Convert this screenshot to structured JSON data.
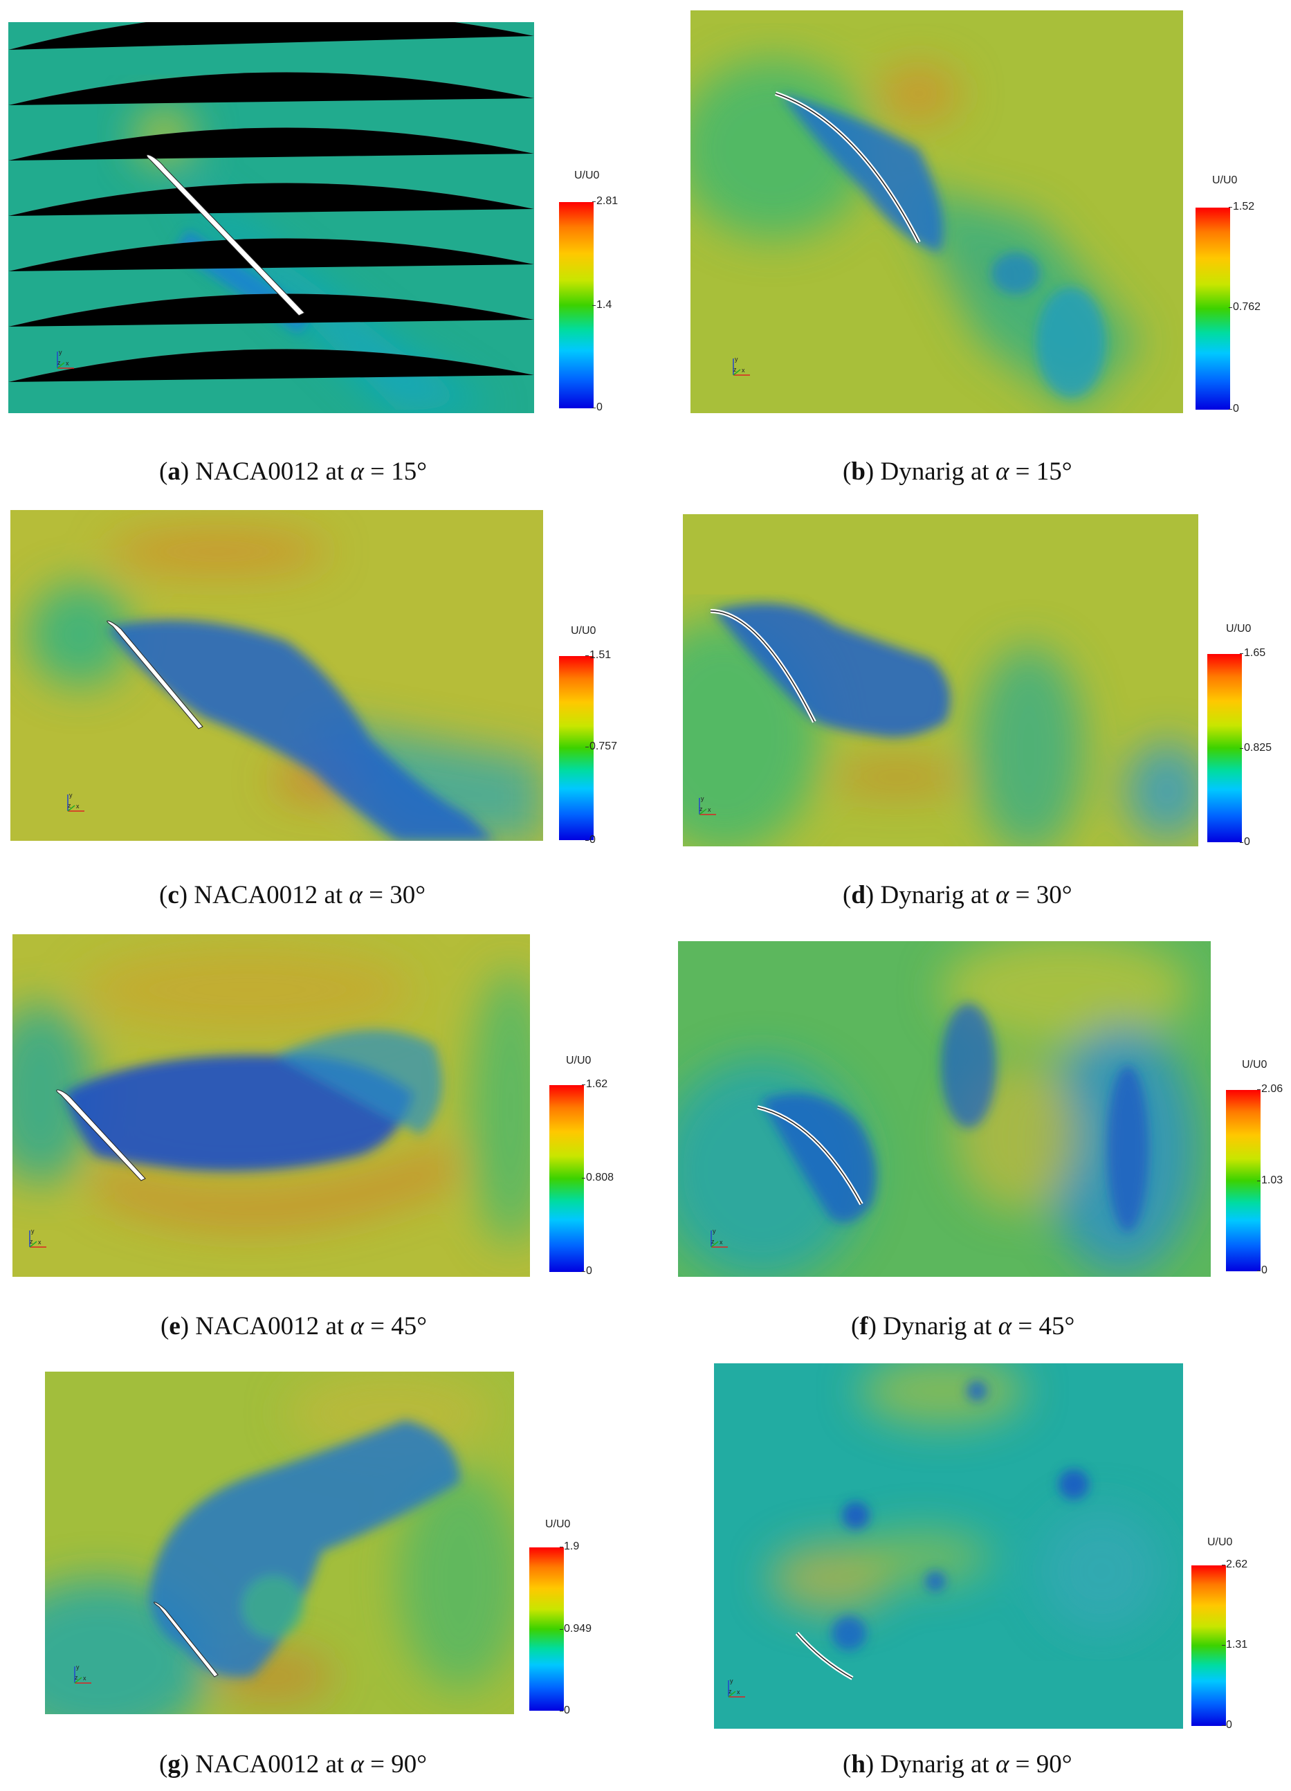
{
  "panels": [
    {
      "id": "a",
      "tag": "a",
      "subject": "NACA0012",
      "angle": "15°",
      "cbar_title": "U/U0",
      "ticks": [
        "2.81",
        "1.4",
        "0"
      ]
    },
    {
      "id": "b",
      "tag": "b",
      "subject": "Dynarig",
      "angle": "15°",
      "cbar_title": "U/U0",
      "ticks": [
        "1.52",
        "0.762",
        "0"
      ]
    },
    {
      "id": "c",
      "tag": "c",
      "subject": "NACA0012",
      "angle": "30°",
      "cbar_title": "U/U0",
      "ticks": [
        "1.51",
        "0.757",
        "0"
      ]
    },
    {
      "id": "d",
      "tag": "d",
      "subject": "Dynarig",
      "angle": "30°",
      "cbar_title": "U/U0",
      "ticks": [
        "1.65",
        "0.825",
        "0"
      ]
    },
    {
      "id": "e",
      "tag": "e",
      "subject": "NACA0012",
      "angle": "45°",
      "cbar_title": "U/U0",
      "ticks": [
        "1.62",
        "0.808",
        "0"
      ]
    },
    {
      "id": "f",
      "tag": "f",
      "subject": "Dynarig",
      "angle": "45°",
      "cbar_title": "U/U0",
      "ticks": [
        "2.06",
        "1.03",
        "0"
      ]
    },
    {
      "id": "g",
      "tag": "g",
      "subject": "NACA0012",
      "angle": "90°",
      "cbar_title": "U/U0",
      "ticks": [
        "1.9",
        "0.949",
        "0"
      ]
    },
    {
      "id": "h",
      "tag": "h",
      "subject": "Dynarig",
      "angle": "90°",
      "cbar_title": "U/U0",
      "ticks": [
        "2.62",
        "1.31",
        "0"
      ]
    }
  ],
  "caption_text": {
    "at": "at",
    "alpha": "α",
    "eq": "="
  },
  "axis_labels": {
    "x": "x",
    "y": "y",
    "z": "z"
  },
  "colors": {
    "low": "#0000e0",
    "mid": "#3cd200",
    "high": "#ff0000"
  }
}
